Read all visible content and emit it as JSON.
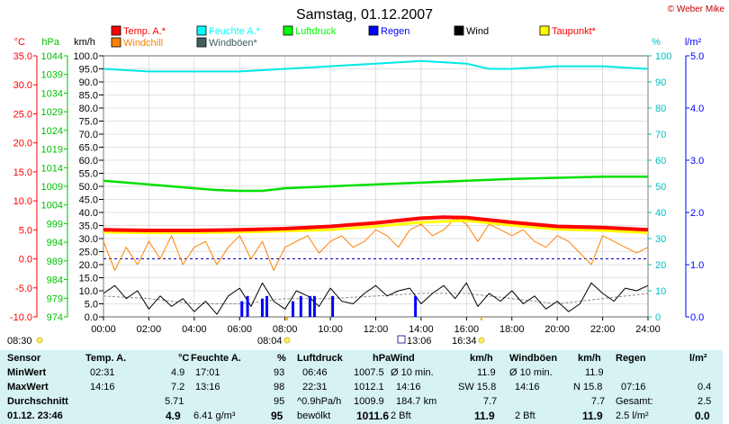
{
  "chart_data": {
    "type": "line",
    "title": "Samstag, 01.12.2007",
    "credit": "© Weber Mike",
    "axes": {
      "temp": {
        "label": "°C",
        "ticks": [
          "35.0",
          "30.0",
          "25.0",
          "20.0",
          "15.0",
          "10.0",
          "5.0",
          "0.0",
          "-5.0",
          "-10.0"
        ],
        "range": [
          -10,
          35
        ],
        "color": "#ff0000"
      },
      "hpa": {
        "label": "hPa",
        "ticks": [
          "1044",
          "1039",
          "1034",
          "1029",
          "1024",
          "1019",
          "1014",
          "1009",
          "1004",
          "999",
          "994",
          "989",
          "984",
          "979",
          "974"
        ],
        "range": [
          974,
          1044
        ],
        "color": "#00c000"
      },
      "kmh": {
        "label": "km/h",
        "range": [
          0,
          100
        ],
        "step": 5,
        "color": "#000000"
      },
      "pct": {
        "label": "%",
        "range": [
          0,
          100
        ],
        "step": 10,
        "color": "#00c0c0"
      },
      "rain": {
        "label": "l/m²",
        "ticks": [
          "5.0",
          "4.0",
          "3.0",
          "2.0",
          "1.0",
          "0.0"
        ],
        "range": [
          0,
          5
        ],
        "color": "#0000ff"
      },
      "x": {
        "ticks": [
          "00:00",
          "02:00",
          "04:00",
          "06:00",
          "08:00",
          "10:00",
          "12:00",
          "14:00",
          "16:00",
          "18:00",
          "20:00",
          "22:00",
          "24:00"
        ],
        "range": [
          0,
          24
        ]
      }
    },
    "legend": [
      {
        "name": "Temp. A.*",
        "color": "#ff0000"
      },
      {
        "name": "Feuchte A.*",
        "color": "#00ffff"
      },
      {
        "name": "Luftdruck",
        "color": "#00ff00"
      },
      {
        "name": "Regen",
        "color": "#0000ff"
      },
      {
        "name": "Wind",
        "color": "#000000"
      },
      {
        "name": "Taupunkt*",
        "color": "#ffff00"
      },
      {
        "name": "Windchill",
        "color": "#ff8000"
      },
      {
        "name": "Windböen*",
        "color": "#406060"
      }
    ],
    "series": {
      "temp": {
        "x": [
          0,
          2,
          4,
          6,
          8,
          10,
          12,
          14,
          15,
          16,
          18,
          20,
          22,
          24
        ],
        "y": [
          5.0,
          4.9,
          4.9,
          5.0,
          5.2,
          5.6,
          6.2,
          7.0,
          7.2,
          7.1,
          6.3,
          5.6,
          5.4,
          5.0
        ]
      },
      "dewpoint": {
        "x": [
          0,
          2,
          4,
          6,
          8,
          10,
          12,
          14,
          16,
          18,
          20,
          22,
          24
        ],
        "y": [
          4.6,
          4.5,
          4.5,
          4.6,
          4.8,
          5.0,
          5.6,
          6.3,
          6.6,
          5.8,
          5.1,
          4.9,
          4.5
        ]
      },
      "humidity": {
        "x": [
          0,
          2,
          4,
          6,
          8,
          10,
          12,
          14,
          16,
          17,
          18,
          20,
          22,
          24
        ],
        "y": [
          95,
          94,
          94,
          94,
          95,
          96,
          97,
          98,
          97,
          95,
          95,
          96,
          96,
          95
        ]
      },
      "pressure": {
        "x": [
          0,
          2,
          4,
          5,
          6,
          7,
          8,
          10,
          12,
          14,
          16,
          18,
          20,
          22,
          24
        ],
        "y": [
          1010.5,
          1009.5,
          1008.5,
          1008,
          1007.8,
          1007.8,
          1008.5,
          1009,
          1009.5,
          1010,
          1010.5,
          1011,
          1011.3,
          1011.6,
          1011.6
        ]
      },
      "windchill": {
        "x": [
          0,
          0.5,
          1,
          1.5,
          2,
          2.5,
          3,
          3.5,
          4,
          4.5,
          5,
          5.5,
          6,
          6.5,
          7,
          7.5,
          8,
          8.5,
          9,
          9.5,
          10,
          10.5,
          11,
          11.5,
          12,
          12.5,
          13,
          13.5,
          14,
          14.5,
          15,
          15.5,
          16,
          16.5,
          17,
          17.5,
          18,
          18.5,
          19,
          19.5,
          20,
          20.5,
          21,
          21.5,
          22,
          22.5,
          23,
          23.5,
          24
        ],
        "y": [
          3,
          -2,
          2,
          -1,
          3,
          0,
          4,
          -1,
          2,
          3,
          -1,
          2,
          4,
          0,
          3,
          -2,
          2,
          3,
          4,
          1,
          3,
          4,
          2,
          3,
          5,
          4,
          2,
          5,
          6,
          4,
          5,
          7,
          6,
          3,
          6,
          5,
          4,
          5,
          3,
          2,
          4,
          3,
          1,
          -1,
          4,
          3,
          2,
          1,
          2
        ]
      },
      "wind": {
        "x": [
          0,
          0.5,
          1,
          1.5,
          2,
          2.5,
          3,
          3.5,
          4,
          4.5,
          5,
          5.5,
          6,
          6.5,
          7,
          7.5,
          8,
          8.5,
          9,
          9.5,
          10,
          10.5,
          11,
          11.5,
          12,
          12.5,
          13,
          13.5,
          14,
          14.5,
          15,
          15.5,
          16,
          16.5,
          17,
          17.5,
          18,
          18.5,
          19,
          19.5,
          20,
          20.5,
          21,
          21.5,
          22,
          22.5,
          23,
          23.5,
          24
        ],
        "y": [
          9,
          12,
          7,
          10,
          3,
          8,
          4,
          7,
          2,
          6,
          1,
          8,
          11,
          4,
          13,
          6,
          3,
          10,
          8,
          4,
          11,
          6,
          5,
          9,
          12,
          8,
          10,
          11,
          5,
          9,
          12,
          7,
          13,
          4,
          9,
          6,
          10,
          5,
          8,
          3,
          6,
          2,
          5,
          13,
          9,
          6,
          11,
          10,
          12
        ]
      },
      "gust": {
        "x": [
          0,
          2,
          4,
          6,
          8,
          10,
          12,
          14,
          16,
          18,
          20,
          22,
          24
        ],
        "y": [
          8,
          7,
          5,
          5,
          7,
          7,
          8,
          9,
          9,
          7,
          5,
          7,
          9
        ]
      },
      "rain": {
        "x": [
          6.1,
          6.35,
          7.0,
          7.2,
          8.35,
          8.7,
          9.1,
          9.3,
          10.1,
          13.75
        ],
        "y": [
          0.3,
          0.4,
          0.35,
          0.4,
          0.3,
          0.4,
          0.4,
          0.4,
          0.4,
          0.4
        ]
      }
    },
    "reference_line": {
      "axis": "temp",
      "y": 0
    },
    "markers": {
      "sunrise": "08:04",
      "sunset": "16:34",
      "daylength_start": "08:30",
      "moon": "13:06"
    }
  },
  "table": {
    "row_labels": [
      "Sensor",
      "MinWert",
      "MaxWert",
      "Durchschnitt",
      "01.12. 23:46"
    ],
    "temp": {
      "h": "Temp. A.",
      "u": "°C",
      "min_t": "02:31",
      "min": "4.9",
      "max_t": "14:16",
      "max": "7.2",
      "avg": "5.71",
      "cur": "4.9"
    },
    "hum": {
      "h": "Feuchte A.",
      "u": "%",
      "min_t": "17:01",
      "min": "93",
      "max_t": "13:16",
      "max": "98",
      "avg": "95",
      "abs": "6.41 g/m³",
      "cur": "95"
    },
    "pres": {
      "h": "Luftdruck",
      "u": "hPa",
      "min_t": "06:46",
      "min": "1007.5",
      "max_t": "22:31",
      "max": "1012.1",
      "trend": "^0.9hPa/h",
      "avg": "1009.9",
      "desc": "bewölkt",
      "cur": "1011.6"
    },
    "wind": {
      "h": "Wind",
      "u": "km/h",
      "r1a": "Ø 10 min.",
      "r1b": "11.9",
      "r2a": "14:16",
      "r2b": "SW 15.8",
      "r3a": "184.7 km",
      "r3b": "7.7",
      "r4a": "2 Bft",
      "r4b": "11.9"
    },
    "gust": {
      "h": "Windböen",
      "u": "km/h",
      "r1a": "Ø 10 min.",
      "r1b": "11.9",
      "r2a": "14:16",
      "r2b": "N 15.8",
      "r3b": "7.7",
      "r4a": "2 Bft",
      "r4b": "11.9"
    },
    "rain": {
      "h": "Regen",
      "u": "l/m²",
      "r2a": "07:16",
      "r2b": "0.4",
      "r3a": "Gesamt:",
      "r3b": "2.5",
      "r4a": "2.5 l/m²",
      "r4b": "0.0"
    }
  }
}
